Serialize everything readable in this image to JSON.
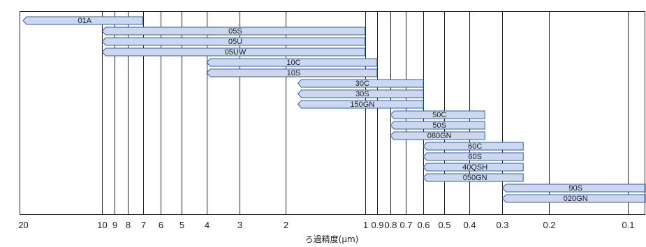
{
  "chart_data": {
    "type": "bar",
    "orientation": "horizontal-range",
    "x_scale": "log",
    "x_direction": "descending",
    "xlim": [
      20,
      0.08
    ],
    "xlabel": "ろ過精度(μm)",
    "x_ticks": [
      20,
      10,
      9,
      8,
      7,
      6,
      5,
      4,
      3,
      2,
      1,
      0.9,
      0.8,
      0.7,
      0.6,
      0.5,
      0.4,
      0.3,
      0.2,
      0.1
    ],
    "x_tick_labels": [
      "20",
      "10",
      "9",
      "8",
      "7",
      "6",
      "5",
      "4",
      "3",
      "2",
      "1",
      "0.9",
      "0.8",
      "0.7",
      "0.6",
      "0.5",
      "0.4",
      "0.3",
      "0.2",
      "0.1"
    ],
    "grid": "vertical",
    "colors": {
      "bar_fill": "#cdd8ee",
      "bar_stroke": "#2f5fa8",
      "grid": "#222222"
    },
    "bars": [
      {
        "label": "01A",
        "from": 20,
        "to": 7
      },
      {
        "label": "05S",
        "from": 10,
        "to": 1
      },
      {
        "label": "05U",
        "from": 10,
        "to": 1
      },
      {
        "label": "05UW",
        "from": 10,
        "to": 1
      },
      {
        "label": "10C",
        "from": 4,
        "to": 0.9
      },
      {
        "label": "10S",
        "from": 4,
        "to": 0.9
      },
      {
        "label": "30C",
        "from": 1.8,
        "to": 0.6
      },
      {
        "label": "30S",
        "from": 1.8,
        "to": 0.6
      },
      {
        "label": "150GN",
        "from": 1.8,
        "to": 0.6
      },
      {
        "label": "50C",
        "from": 0.8,
        "to": 0.35
      },
      {
        "label": "50S",
        "from": 0.8,
        "to": 0.35
      },
      {
        "label": "080GN",
        "from": 0.8,
        "to": 0.35
      },
      {
        "label": "60C",
        "from": 0.6,
        "to": 0.25
      },
      {
        "label": "60S",
        "from": 0.6,
        "to": 0.25
      },
      {
        "label": "40QSH",
        "from": 0.6,
        "to": 0.25
      },
      {
        "label": "050GN",
        "from": 0.6,
        "to": 0.25
      },
      {
        "label": "90S",
        "from": 0.3,
        "to": 0.08
      },
      {
        "label": "020GN",
        "from": 0.3,
        "to": 0.08
      }
    ]
  }
}
